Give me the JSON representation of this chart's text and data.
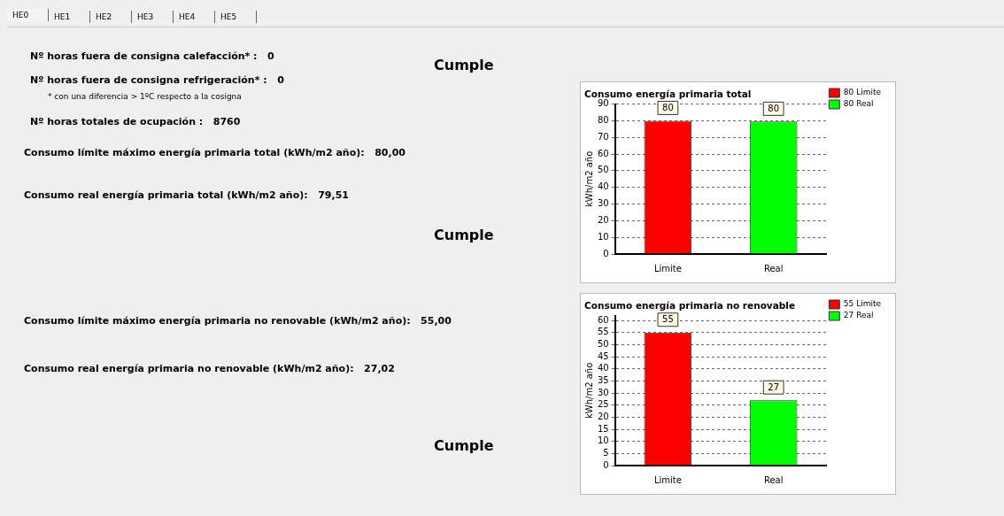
{
  "chart_data": [
    {
      "type": "other",
      "annotations": [
        "HE0",
        "HE1",
        "HE2",
        "HE3",
        "HE4",
        "HE5",
        "Nº horas fuera de consigna calefacción* :   0",
        "Cumple",
        "Nº horas fuera de consigna refrigeración* :   0",
        "* con una diferencia > 1ºC respecto a la cosigna",
        "Nº horas totales de ocupación :   8760",
        "Consumo límite máximo energía primaria total (kWh/m2 año):   80,00",
        "Consumo real energía primaria total (kWh/m2 año):   79,51",
        "Cumple",
        "Consumo límite máximo energía primaria no renovable (kWh/m2 año):   55,00",
        "Consumo real energía primaria no renovable (kWh/m2 año):   27,02",
        "Cumple"
      ]
    },
    {
      "type": "bar",
      "title": "Consumo energía primaria total",
      "ylabel": "kWh/m2 año",
      "categories": [
        "Limite",
        "Real"
      ],
      "series": [
        {
          "name": "80 Limite",
          "color": "#ff0000",
          "values": [
            80,
            null
          ],
          "value_labels": [
            "80",
            null
          ]
        },
        {
          "name": "80 Real",
          "color": "#00ff00",
          "values": [
            null,
            79.51
          ],
          "value_labels": [
            null,
            "80"
          ]
        }
      ],
      "ylim": [
        0,
        90
      ],
      "yticks": [
        0,
        10,
        20,
        30,
        40,
        50,
        60,
        70,
        80,
        90
      ],
      "grid": "y",
      "legend": "top right"
    },
    {
      "type": "bar",
      "title": "Consumo energía primaria no renovable",
      "ylabel": "kWh/m2 año",
      "categories": [
        "Limite",
        "Real"
      ],
      "series": [
        {
          "name": "55 Limite",
          "color": "#ff0000",
          "values": [
            55,
            null
          ],
          "value_labels": [
            "55",
            null
          ]
        },
        {
          "name": "27 Real",
          "color": "#00ff00",
          "values": [
            null,
            27.02
          ],
          "value_labels": [
            null,
            "27"
          ]
        }
      ],
      "ylim": [
        0,
        62
      ],
      "yticks": [
        0,
        5,
        10,
        15,
        20,
        25,
        30,
        35,
        40,
        45,
        50,
        55,
        60
      ],
      "grid": "y",
      "legend": "top right"
    }
  ]
}
